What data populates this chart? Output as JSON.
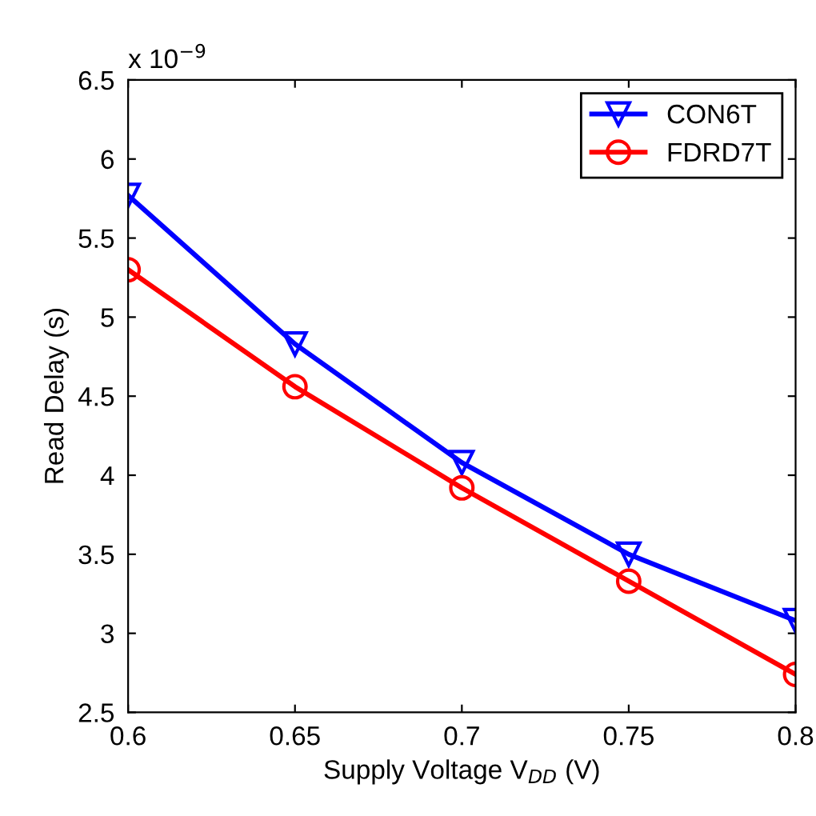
{
  "chart_data": {
    "type": "line",
    "xlabel": "Supply Voltage V$_{DD}$ (V)",
    "ylabel": "Read Delay (s)",
    "annotations": [
      "x 10$^{−9}$"
    ],
    "x": [
      0.6,
      0.65,
      0.7,
      0.75,
      0.8
    ],
    "series": [
      {
        "name": "CON6T",
        "color": "#0000ff",
        "marker": "triangle",
        "values": [
          5.77,
          4.83,
          4.08,
          3.5,
          3.08
        ]
      },
      {
        "name": "FDRD7T",
        "color": "#ff0000",
        "marker": "circle",
        "values": [
          5.3,
          4.56,
          3.92,
          3.33,
          2.74
        ]
      }
    ],
    "xlim": [
      0.6,
      0.8
    ],
    "xticks": [
      0.6,
      0.65,
      0.7,
      0.75,
      0.8
    ],
    "ylim": [
      2.5,
      6.5
    ],
    "yticks": [
      2.5,
      3,
      3.5,
      4,
      4.5,
      5,
      5.5,
      6,
      6.5
    ],
    "grid": false,
    "legend": "top right",
    "line_style": "solid"
  }
}
